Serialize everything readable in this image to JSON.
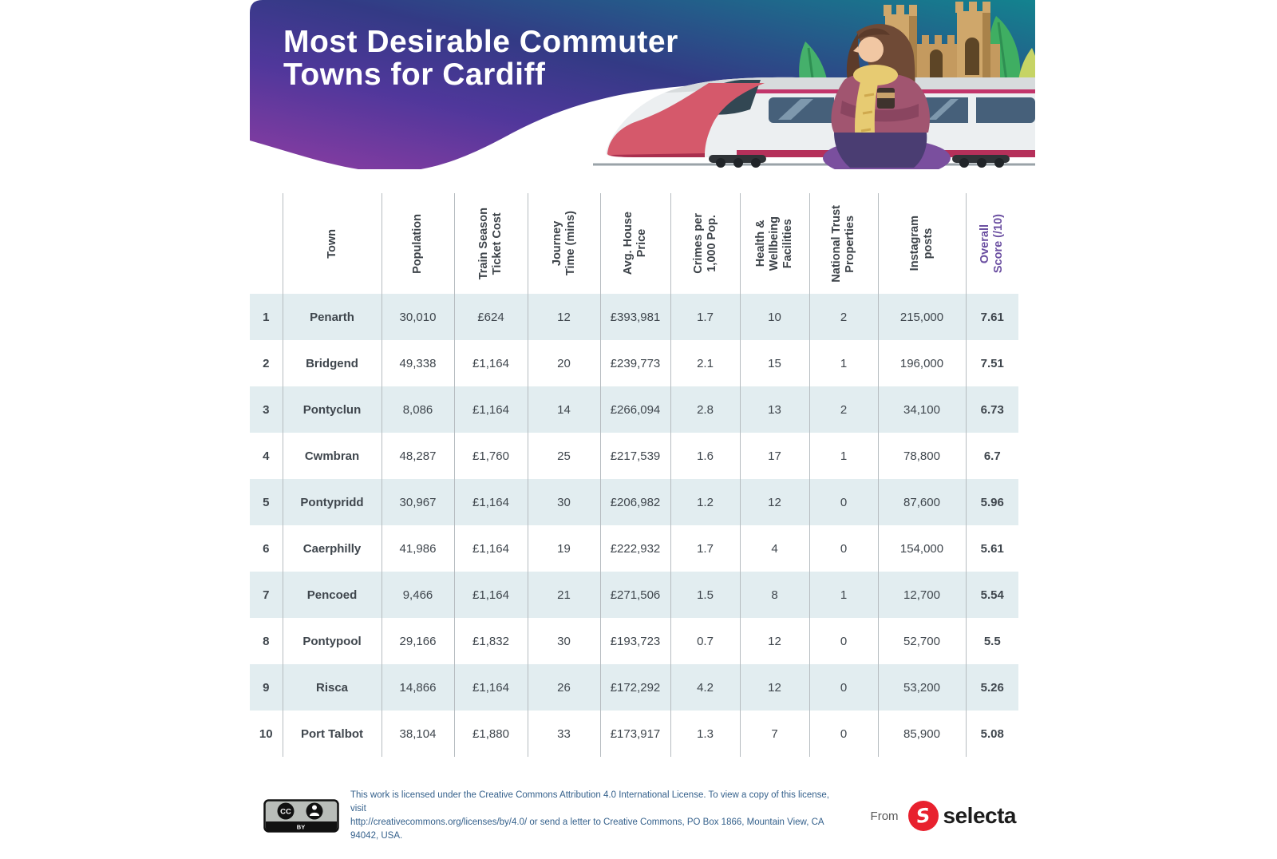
{
  "header": {
    "title": "Most Desirable Commuter\nTowns for Cardiff",
    "gradient_left": "#8d3da2",
    "gradient_mid": "#3f3a8c",
    "gradient_right": "#13838f"
  },
  "chart_data": {
    "type": "table",
    "title": "Most Desirable Commuter Towns for Cardiff",
    "columns": [
      {
        "key": "town",
        "label": "Town"
      },
      {
        "key": "population",
        "label": "Population"
      },
      {
        "key": "ticket",
        "label": "Train Season\nTicket Cost"
      },
      {
        "key": "journey",
        "label": "Journey\nTime (mins)"
      },
      {
        "key": "house",
        "label": "Avg. House\nPrice"
      },
      {
        "key": "crimes",
        "label": "Crimes per\n1,000 Pop."
      },
      {
        "key": "health",
        "label": "Health &\nWellbeing\nFacilities"
      },
      {
        "key": "trust",
        "label": "National Trust\nProperties"
      },
      {
        "key": "instagram",
        "label": "Instagram\nposts"
      },
      {
        "key": "score",
        "label": "Overall\nScore (/10)"
      }
    ],
    "rows": [
      {
        "rank": "1",
        "town": "Penarth",
        "population": "30,010",
        "ticket": "£624",
        "journey": "12",
        "house": "£393,981",
        "crimes": "1.7",
        "health": "10",
        "trust": "2",
        "instagram": "215,000",
        "score": "7.61"
      },
      {
        "rank": "2",
        "town": "Bridgend",
        "population": "49,338",
        "ticket": "£1,164",
        "journey": "20",
        "house": "£239,773",
        "crimes": "2.1",
        "health": "15",
        "trust": "1",
        "instagram": "196,000",
        "score": "7.51"
      },
      {
        "rank": "3",
        "town": "Pontyclun",
        "population": "8,086",
        "ticket": "£1,164",
        "journey": "14",
        "house": "£266,094",
        "crimes": "2.8",
        "health": "13",
        "trust": "2",
        "instagram": "34,100",
        "score": "6.73"
      },
      {
        "rank": "4",
        "town": "Cwmbran",
        "population": "48,287",
        "ticket": "£1,760",
        "journey": "25",
        "house": "£217,539",
        "crimes": "1.6",
        "health": "17",
        "trust": "1",
        "instagram": "78,800",
        "score": "6.7"
      },
      {
        "rank": "5",
        "town": "Pontypridd",
        "population": "30,967",
        "ticket": "£1,164",
        "journey": "30",
        "house": "£206,982",
        "crimes": "1.2",
        "health": "12",
        "trust": "0",
        "instagram": "87,600",
        "score": "5.96"
      },
      {
        "rank": "6",
        "town": "Caerphilly",
        "population": "41,986",
        "ticket": "£1,164",
        "journey": "19",
        "house": "£222,932",
        "crimes": "1.7",
        "health": "4",
        "trust": "0",
        "instagram": "154,000",
        "score": "5.61"
      },
      {
        "rank": "7",
        "town": "Pencoed",
        "population": "9,466",
        "ticket": "£1,164",
        "journey": "21",
        "house": "£271,506",
        "crimes": "1.5",
        "health": "8",
        "trust": "1",
        "instagram": "12,700",
        "score": "5.54"
      },
      {
        "rank": "8",
        "town": "Pontypool",
        "population": "29,166",
        "ticket": "£1,832",
        "journey": "30",
        "house": "£193,723",
        "crimes": "0.7",
        "health": "12",
        "trust": "0",
        "instagram": "52,700",
        "score": "5.5"
      },
      {
        "rank": "9",
        "town": "Risca",
        "population": "14,866",
        "ticket": "£1,164",
        "journey": "26",
        "house": "£172,292",
        "crimes": "4.2",
        "health": "12",
        "trust": "0",
        "instagram": "53,200",
        "score": "5.26"
      },
      {
        "rank": "10",
        "town": "Port Talbot",
        "population": "38,104",
        "ticket": "£1,880",
        "journey": "33",
        "house": "£173,917",
        "crimes": "1.3",
        "health": "7",
        "trust": "0",
        "instagram": "85,900",
        "score": "5.08"
      }
    ],
    "styles": {
      "row_shade": "#e2edf0",
      "divider": "#b6bcc0",
      "text": "#3f464d",
      "score_header_purple": "#6b4fa1",
      "score_value_purple": "#473472"
    }
  },
  "footer": {
    "cc": {
      "logo_label": "CC",
      "badge_label": "BY"
    },
    "license_text": "This work is licensed under the Creative Commons Attribution 4.0 International License. To view a copy of this license, visit\nhttp://creativecommons.org/licenses/by/4.0/ or send a letter to Creative Commons, PO Box 1866, Mountain View, CA 94042, USA.",
    "from_label": "From",
    "brand_initial": "S",
    "brand_name": "selecta",
    "brand_red": "#e8212e"
  }
}
